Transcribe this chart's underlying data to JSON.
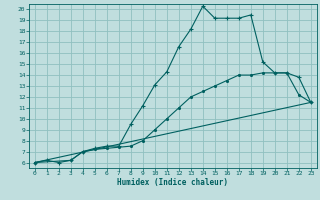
{
  "xlabel": "Humidex (Indice chaleur)",
  "bg_color": "#c0dede",
  "grid_color": "#90c0c0",
  "line_color": "#006060",
  "xlim": [
    -0.5,
    23.5
  ],
  "ylim": [
    5.5,
    20.5
  ],
  "xticks": [
    0,
    1,
    2,
    3,
    4,
    5,
    6,
    7,
    8,
    9,
    10,
    11,
    12,
    13,
    14,
    15,
    16,
    17,
    18,
    19,
    20,
    21,
    22,
    23
  ],
  "yticks": [
    6,
    7,
    8,
    9,
    10,
    11,
    12,
    13,
    14,
    15,
    16,
    17,
    18,
    19,
    20
  ],
  "curve1_x": [
    0,
    1,
    2,
    3,
    4,
    5,
    6,
    7,
    8,
    9,
    10,
    11,
    12,
    13,
    14,
    15,
    16,
    17,
    18,
    19,
    20,
    21,
    22,
    23
  ],
  "curve1_y": [
    6.0,
    6.2,
    6.0,
    6.2,
    7.0,
    7.3,
    7.5,
    7.5,
    9.5,
    11.2,
    13.1,
    14.3,
    16.6,
    18.2,
    20.3,
    19.2,
    19.2,
    19.2,
    19.5,
    15.2,
    14.2,
    14.2,
    13.8,
    11.5
  ],
  "curve2_x": [
    0,
    3,
    4,
    5,
    6,
    7,
    8,
    9,
    10,
    11,
    12,
    13,
    14,
    15,
    16,
    17,
    18,
    19,
    20,
    21,
    22,
    23
  ],
  "curve2_y": [
    6.0,
    6.2,
    7.0,
    7.2,
    7.3,
    7.4,
    7.5,
    8.0,
    9.0,
    10.0,
    11.0,
    12.0,
    12.5,
    13.0,
    13.5,
    14.0,
    14.0,
    14.2,
    14.2,
    14.2,
    12.2,
    11.5
  ],
  "curve3_x": [
    0,
    23
  ],
  "curve3_y": [
    6.0,
    11.5
  ]
}
